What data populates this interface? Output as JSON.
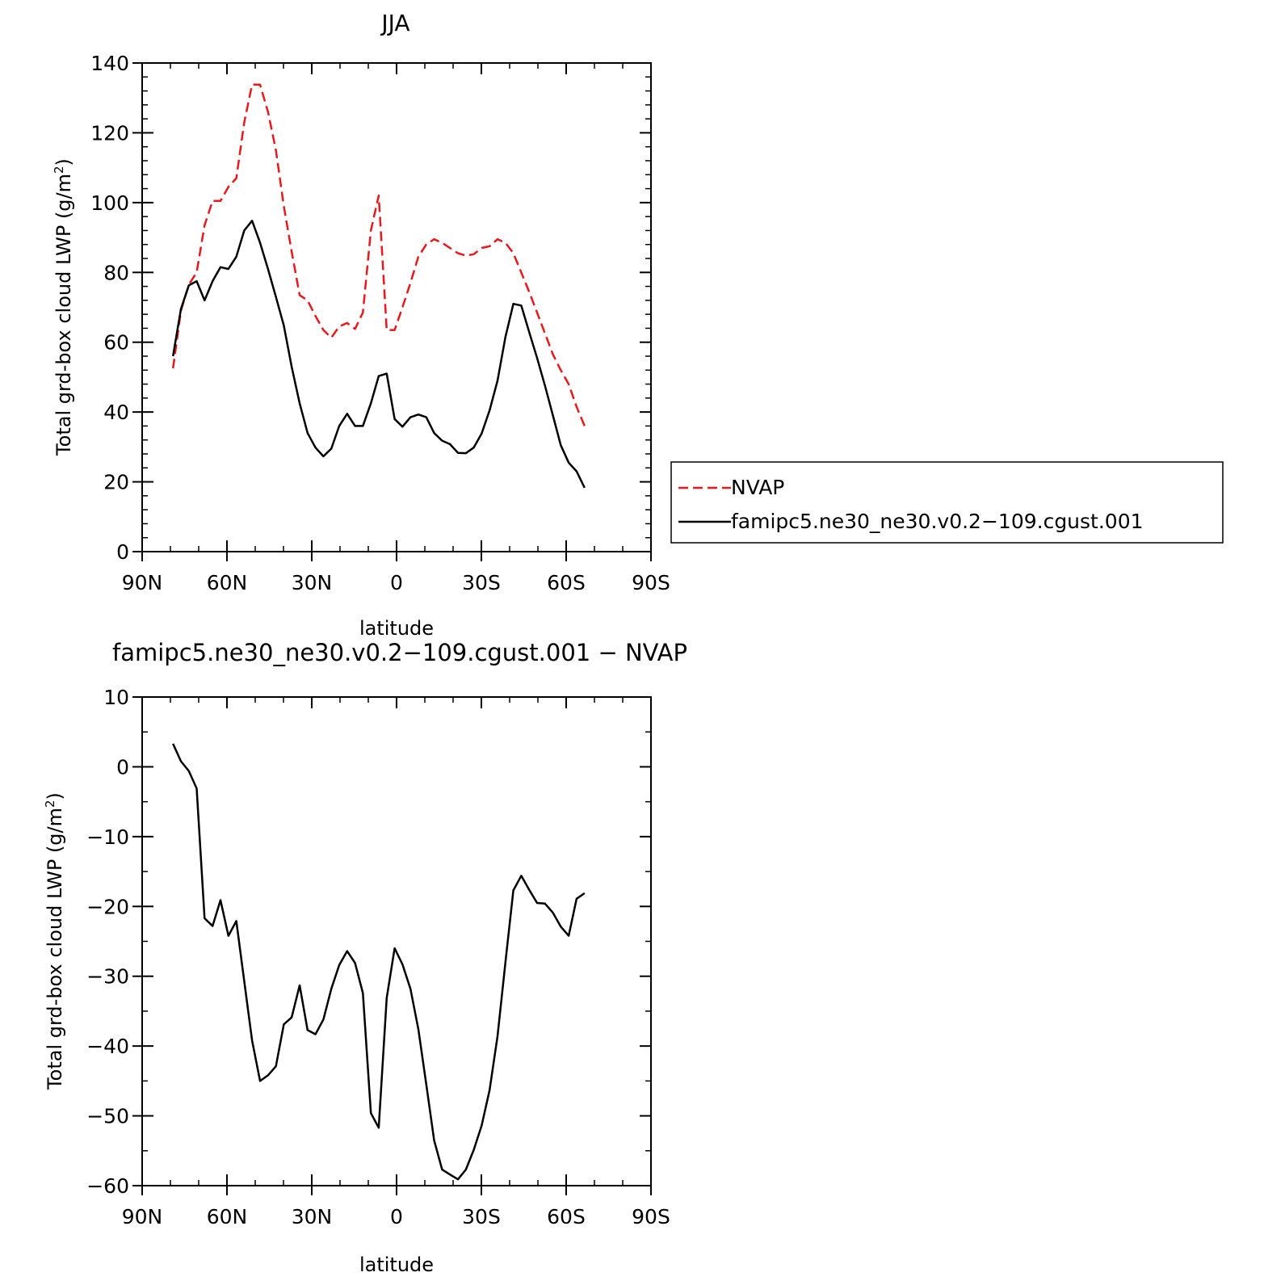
{
  "chart_data": [
    {
      "type": "line",
      "title": "JJA",
      "xlabel": "latitude",
      "ylabel": "Total grd-box cloud LWP (g/m",
      "ylabel_sup": "2",
      "ylabel_close": ")",
      "xlim": [
        90,
        -90
      ],
      "ylim": [
        0,
        140
      ],
      "xticks": [
        {
          "value": 90,
          "label": "90N"
        },
        {
          "value": 60,
          "label": "60N"
        },
        {
          "value": 30,
          "label": "30N"
        },
        {
          "value": 0,
          "label": "0"
        },
        {
          "value": -30,
          "label": "30S"
        },
        {
          "value": -60,
          "label": "60S"
        },
        {
          "value": -90,
          "label": "90S"
        }
      ],
      "yticks": [
        0,
        20,
        40,
        60,
        80,
        100,
        120,
        140
      ],
      "legend": "right, outside plot",
      "series": [
        {
          "name": "NVAP",
          "color": "#e41a1c",
          "style": "dashed",
          "x": [
            79.1,
            76.3,
            73.5,
            70.7,
            67.9,
            65.1,
            62.3,
            59.5,
            56.7,
            53.9,
            51.1,
            48.3,
            45.5,
            42.7,
            39.9,
            37.1,
            34.3,
            31.5,
            28.7,
            25.9,
            23.1,
            20.3,
            17.5,
            14.7,
            11.9,
            9.1,
            6.3,
            3.5,
            0.7,
            -2.1,
            -4.9,
            -7.7,
            -10.5,
            -13.3,
            -16.1,
            -18.9,
            -21.7,
            -24.5,
            -27.3,
            -30.1,
            -32.9,
            -35.7,
            -38.5,
            -41.3,
            -44.1,
            -46.9,
            -49.7,
            -52.5,
            -55.3,
            -58.1,
            -60.9,
            -63.7,
            -66.5
          ],
          "y": [
            52.5,
            69,
            76.5,
            80,
            93.5,
            100.5,
            100.5,
            104.5,
            107,
            123,
            133.8,
            133.8,
            126,
            115,
            99,
            86,
            73.5,
            72,
            67.5,
            63.5,
            61.3,
            64.5,
            65.5,
            63.8,
            68.5,
            92,
            102,
            63.5,
            63.5,
            70,
            77,
            84.5,
            88,
            89.5,
            88.5,
            87,
            85.5,
            84.8,
            85.2,
            87,
            87.5,
            89.5,
            88.5,
            85.5,
            80,
            74.5,
            68.5,
            62.5,
            56.5,
            52,
            48,
            41.5,
            36
          ]
        },
        {
          "name": "famipc5.ne30_ne30.v0.2−109.cgust.001",
          "color": "#000000",
          "style": "solid",
          "x": [
            79.1,
            76.3,
            73.5,
            70.7,
            67.9,
            65.1,
            62.3,
            59.5,
            56.7,
            53.9,
            51.1,
            48.3,
            45.5,
            42.7,
            39.9,
            37.1,
            34.3,
            31.5,
            28.7,
            25.9,
            23.1,
            20.3,
            17.5,
            14.7,
            11.9,
            9.1,
            6.3,
            3.5,
            0.7,
            -2.1,
            -4.9,
            -7.7,
            -10.5,
            -13.3,
            -16.1,
            -18.9,
            -21.7,
            -24.5,
            -27.3,
            -30.1,
            -32.9,
            -35.7,
            -38.5,
            -41.3,
            -44.1,
            -46.9,
            -49.7,
            -52.5,
            -55.3,
            -58.1,
            -60.9,
            -63.7,
            -66.5
          ],
          "y": [
            56,
            69.5,
            76.3,
            77.5,
            72,
            77.5,
            81.5,
            81,
            84.5,
            92,
            94.8,
            88.5,
            81,
            73,
            64.8,
            53,
            42.5,
            34,
            29.8,
            27.3,
            29.5,
            36,
            39.5,
            36,
            36,
            42.5,
            50.3,
            51,
            38,
            35.8,
            38.5,
            39.3,
            38.5,
            34,
            31.8,
            30.8,
            28.3,
            28.2,
            29.8,
            33.8,
            40.5,
            49,
            61.5,
            71,
            70.5,
            63,
            55.5,
            47.5,
            39,
            30.5,
            25.5,
            23,
            18.3
          ]
        }
      ]
    },
    {
      "type": "line",
      "title": "famipc5.ne30_ne30.v0.2−109.cgust.001  −  NVAP",
      "xlabel": "latitude",
      "ylabel": "Total grd-box cloud LWP (g/m",
      "ylabel_sup": "2",
      "ylabel_close": ")",
      "xlim": [
        90,
        -90
      ],
      "ylim": [
        -60,
        10
      ],
      "xticks": [
        {
          "value": 90,
          "label": "90N"
        },
        {
          "value": 60,
          "label": "60N"
        },
        {
          "value": 30,
          "label": "30N"
        },
        {
          "value": 0,
          "label": "0"
        },
        {
          "value": -30,
          "label": "30S"
        },
        {
          "value": -60,
          "label": "60S"
        },
        {
          "value": -90,
          "label": "90S"
        }
      ],
      "yticks": [
        -60,
        -50,
        -40,
        -30,
        -20,
        -10,
        0,
        10
      ],
      "series": [
        {
          "color": "#000000",
          "style": "solid",
          "x": [
            79.1,
            76.3,
            73.5,
            70.7,
            67.9,
            65.1,
            62.3,
            59.5,
            56.7,
            53.9,
            51.1,
            48.3,
            45.5,
            42.7,
            39.9,
            37.1,
            34.3,
            31.5,
            28.7,
            25.9,
            23.1,
            20.3,
            17.5,
            14.7,
            11.9,
            9.1,
            6.3,
            3.5,
            0.7,
            -2.1,
            -4.9,
            -7.7,
            -10.5,
            -13.3,
            -16.1,
            -18.9,
            -21.7,
            -24.5,
            -27.3,
            -30.1,
            -32.9,
            -35.7,
            -38.5,
            -41.3,
            -44.1,
            -46.9,
            -49.7,
            -52.5,
            -55.3,
            -58.1,
            -60.9,
            -63.7,
            -66.5
          ],
          "y": [
            3.3,
            0.8,
            -0.6,
            -3.1,
            -21.7,
            -22.8,
            -19.1,
            -24.2,
            -22.1,
            -30.7,
            -39.2,
            -45,
            -44.2,
            -42.9,
            -36.9,
            -35.9,
            -31.3,
            -37.7,
            -38.3,
            -36.2,
            -31.8,
            -28.4,
            -26.4,
            -28.1,
            -32.4,
            -49.6,
            -51.7,
            -33.1,
            -26,
            -28.3,
            -31.8,
            -37.6,
            -45.5,
            -53.5,
            -57.7,
            -58.4,
            -59.1,
            -57.7,
            -54.9,
            -51.4,
            -46.3,
            -38.6,
            -28,
            -17.7,
            -15.6,
            -17.6,
            -19.5,
            -19.6,
            -20.9,
            -22.9,
            -24.2,
            -18.9,
            -18.1
          ]
        }
      ]
    }
  ],
  "legend": {
    "items": [
      {
        "label": "NVAP",
        "color": "#e41a1c",
        "style": "dashed"
      },
      {
        "label": "famipc5.ne30_ne30.v0.2−109.cgust.001",
        "color": "#000000",
        "style": "solid"
      }
    ]
  }
}
